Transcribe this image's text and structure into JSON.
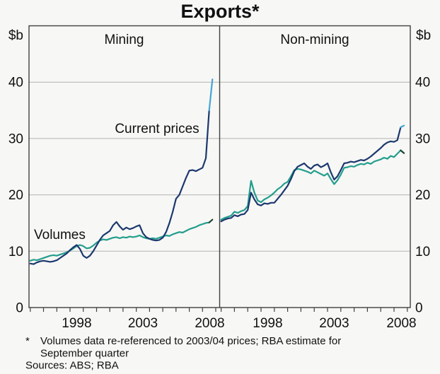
{
  "title": "Exports*",
  "y_axis_unit": "$b",
  "y_tick_labels": [
    "0",
    "10",
    "20",
    "30",
    "40"
  ],
  "x_tick_labels": [
    "1998",
    "2003",
    "2008"
  ],
  "footnote": {
    "marker": "*",
    "line1": "Volumes data re-referenced to 2003/04 prices; RBA estimate for",
    "line2": "September quarter",
    "sources": "Sources: ABS; RBA"
  },
  "colors": {
    "current_prices": "#1c386f",
    "current_prices_estimate": "#45a5d6",
    "current_prices_label": "#27459b",
    "volumes": "#239e8c",
    "volumes_estimate": "#1a4632",
    "volumes_label": "#239e8c",
    "grid": "#b4b4b4",
    "frame": "#404040"
  },
  "chart_data": {
    "type": "line",
    "title": "Exports*",
    "ylabel": "$b",
    "ylim": [
      0,
      50
    ],
    "y_gridlines": [
      10,
      20,
      30,
      40
    ],
    "x_start": 1995.0,
    "x_step": 0.25,
    "x_end": 2008.75,
    "x_tick_label_years": [
      1998,
      2003,
      2008
    ],
    "panels": [
      {
        "label": "Mining",
        "series": [
          {
            "name": "Current prices",
            "color_key": "current_prices",
            "estimate_points": 1,
            "values": [
              7.8,
              7.7,
              8.0,
              8.2,
              8.3,
              8.2,
              8.1,
              8.2,
              8.4,
              8.8,
              9.2,
              9.6,
              10.2,
              10.7,
              11.1,
              10.4,
              9.2,
              8.8,
              9.2,
              10.0,
              11.0,
              12.0,
              12.8,
              13.2,
              13.6,
              14.6,
              15.2,
              14.4,
              13.8,
              14.2,
              13.9,
              14.1,
              14.4,
              14.6,
              13.2,
              12.5,
              12.2,
              12.0,
              11.9,
              12.0,
              12.4,
              13.4,
              15.0,
              17.0,
              19.3,
              20.0,
              21.5,
              23.0,
              24.3,
              24.4,
              24.2,
              24.5,
              24.8,
              26.5,
              35.0,
              40.5
            ]
          },
          {
            "name": "Volumes",
            "color_key": "volumes",
            "estimate_points": 1,
            "values": [
              8.3,
              8.5,
              8.4,
              8.6,
              8.8,
              9.0,
              9.2,
              9.3,
              9.2,
              9.4,
              9.6,
              9.8,
              10.1,
              10.5,
              10.9,
              11.1,
              10.9,
              10.5,
              10.6,
              11.0,
              11.5,
              11.9,
              12.1,
              12.0,
              12.2,
              12.4,
              12.5,
              12.3,
              12.5,
              12.4,
              12.6,
              12.5,
              12.6,
              12.8,
              12.5,
              12.3,
              12.2,
              12.3,
              12.2,
              12.4,
              12.6,
              12.8,
              12.7,
              13.0,
              13.2,
              13.4,
              13.3,
              13.6,
              13.9,
              14.1,
              14.3,
              14.6,
              14.8,
              15.0,
              15.1,
              15.6
            ]
          }
        ]
      },
      {
        "label": "Non-mining",
        "series": [
          {
            "name": "Current prices",
            "color_key": "current_prices",
            "estimate_points": 1,
            "values": [
              15.3,
              15.6,
              15.8,
              15.9,
              16.4,
              16.2,
              16.5,
              16.6,
              17.3,
              20.4,
              19.2,
              18.3,
              18.1,
              18.5,
              18.4,
              18.6,
              18.6,
              19.3,
              20.0,
              20.8,
              21.6,
              22.8,
              24.2,
              25.0,
              25.3,
              25.6,
              25.0,
              24.6,
              25.2,
              25.4,
              24.9,
              25.2,
              25.6,
              24.0,
              22.7,
              23.3,
              24.4,
              25.6,
              25.7,
              25.9,
              25.8,
              26.0,
              26.2,
              26.1,
              26.4,
              26.8,
              27.3,
              27.8,
              28.3,
              28.9,
              29.3,
              29.5,
              29.4,
              29.7,
              32.0,
              32.3
            ]
          },
          {
            "name": "Volumes",
            "color_key": "volumes",
            "estimate_points": 1,
            "values": [
              15.6,
              15.9,
              16.1,
              16.3,
              17.0,
              16.8,
              17.1,
              17.3,
              18.0,
              22.5,
              20.4,
              19.0,
              18.7,
              19.2,
              19.5,
              19.9,
              20.4,
              21.0,
              21.4,
              22.0,
              22.3,
              23.3,
              24.4,
              24.6,
              24.5,
              24.3,
              24.1,
              23.8,
              24.3,
              24.0,
              23.7,
              23.4,
              23.8,
              22.8,
              21.9,
              22.6,
              23.6,
              24.8,
              24.9,
              25.1,
              25.0,
              25.3,
              25.5,
              25.4,
              25.7,
              25.5,
              25.9,
              26.1,
              26.3,
              26.6,
              26.4,
              26.9,
              26.7,
              27.3,
              27.9,
              27.4
            ]
          }
        ]
      }
    ]
  }
}
